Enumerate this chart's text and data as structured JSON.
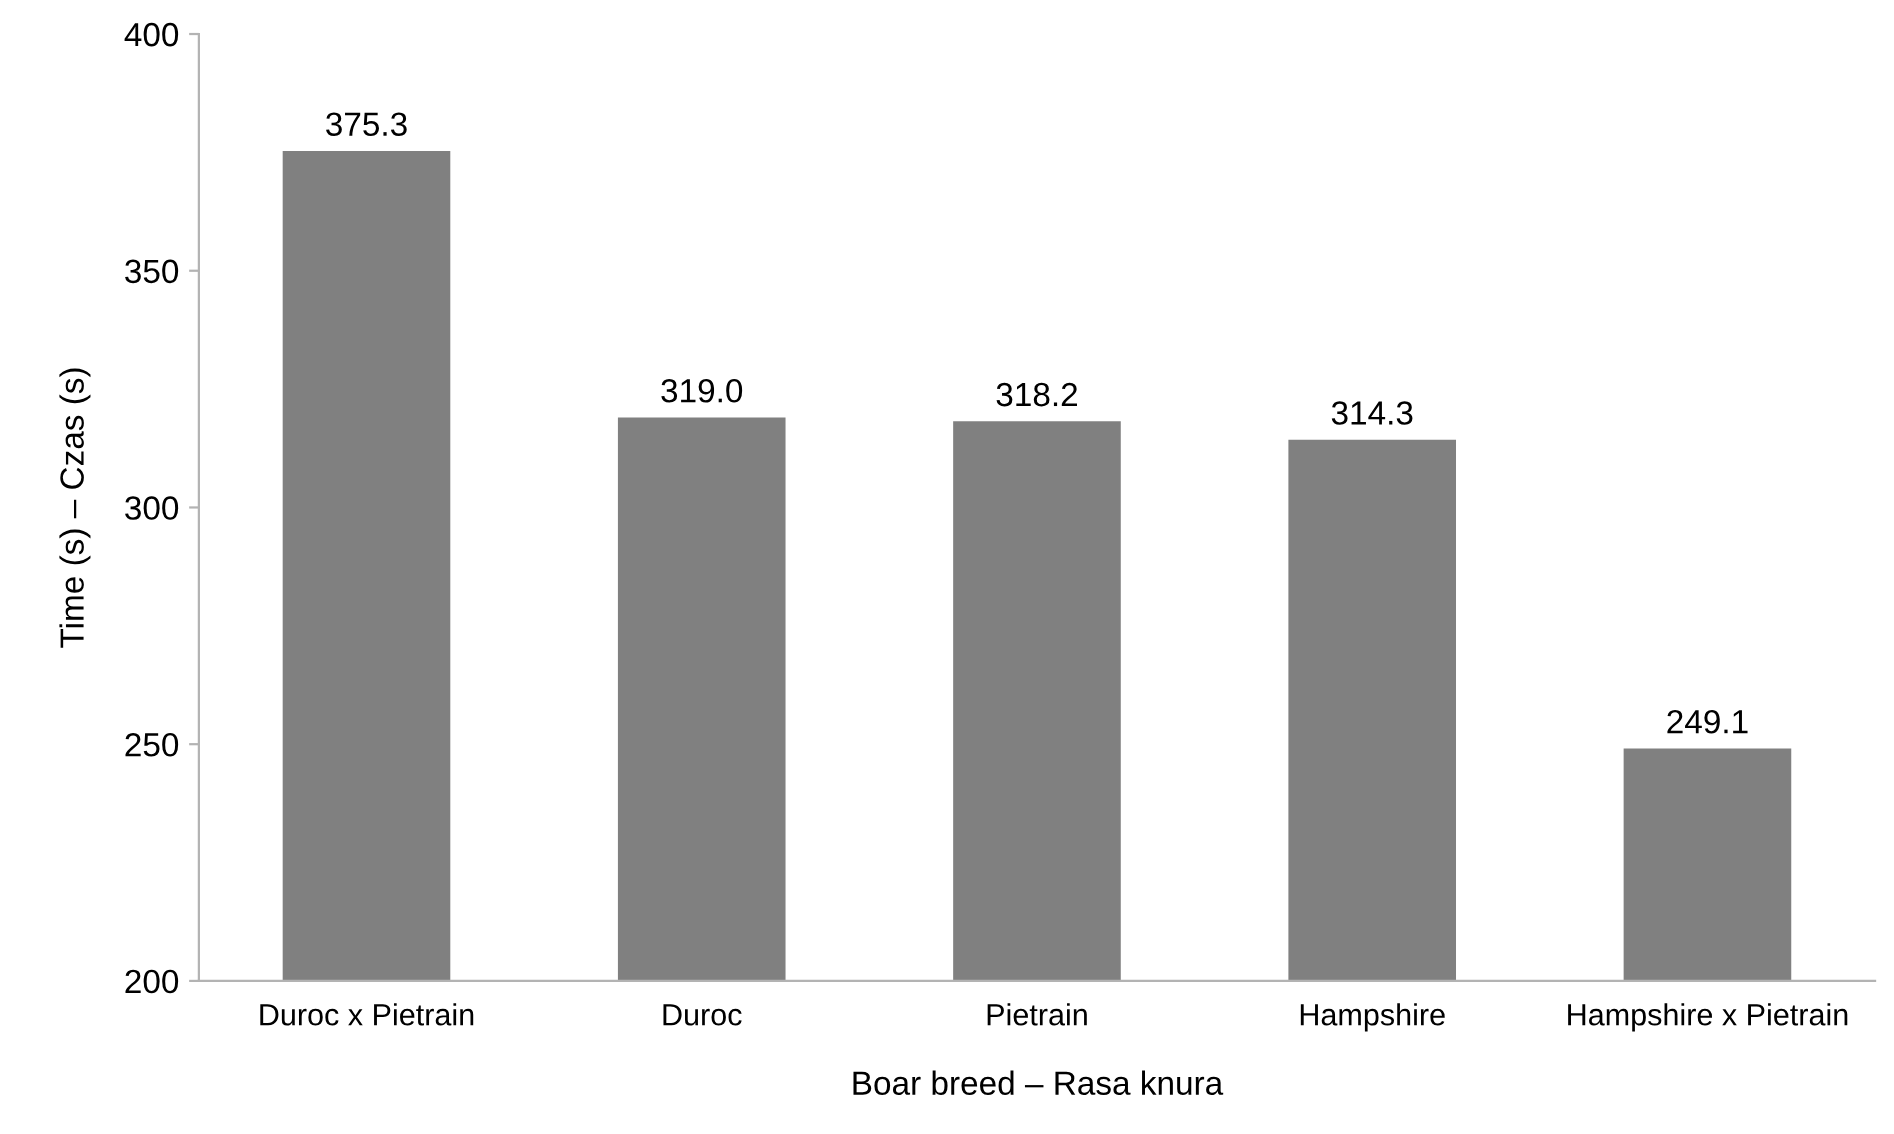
{
  "chart_data": {
    "type": "bar",
    "xlabel": "Boar breed – Rasa knura",
    "ylabel": "Time (s) – Czas (s)",
    "categories": [
      "Duroc x Pietrain",
      "Duroc",
      "Pietrain",
      "Hampshire",
      "Hampshire x Pietrain"
    ],
    "values": [
      375.3,
      319.0,
      318.2,
      314.3,
      249.1
    ],
    "value_labels": [
      "375.3",
      "319.0",
      "318.2",
      "314.3",
      "249.1"
    ],
    "color": "#808080",
    "ylim": [
      200,
      400
    ],
    "yticks": [
      200,
      250,
      300,
      350,
      400
    ],
    "grid": false,
    "legend": false
  }
}
